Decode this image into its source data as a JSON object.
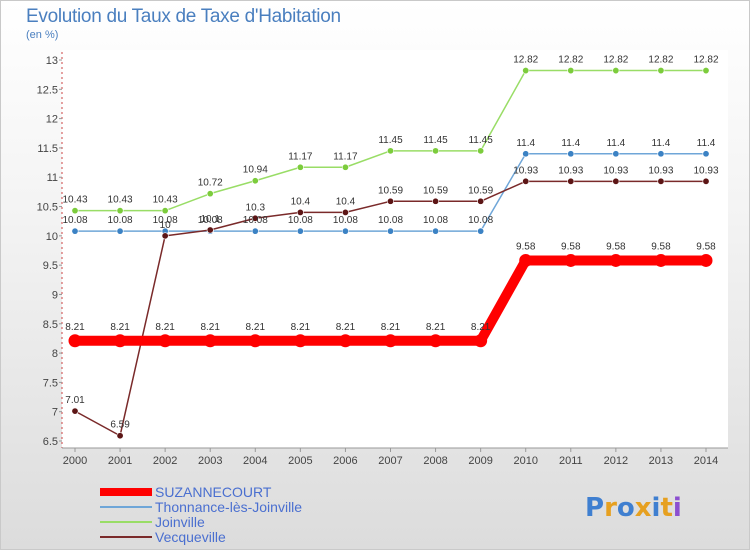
{
  "title": "Evolution du Taux de Taxe d'Habitation",
  "subtitle": "(en %)",
  "logo_text": "Proxiti",
  "chart_data": {
    "type": "line",
    "title": "Evolution du Taux de Taxe d'Habitation",
    "ylabel": "(en %)",
    "xlabel": "",
    "ylim": [
      6.5,
      13
    ],
    "yticks": [
      6.5,
      7,
      7.5,
      8,
      8.5,
      9,
      9.5,
      10,
      10.5,
      11,
      11.5,
      12,
      12.5,
      13
    ],
    "x": [
      2000,
      2001,
      2002,
      2003,
      2004,
      2005,
      2006,
      2007,
      2008,
      2009,
      2010,
      2011,
      2012,
      2013,
      2014
    ],
    "series": [
      {
        "name": "SUZANNECOURT",
        "color": "#ff0000",
        "emphasis": true,
        "values": [
          8.21,
          8.21,
          8.21,
          8.21,
          8.21,
          8.21,
          8.21,
          8.21,
          8.21,
          8.21,
          9.58,
          9.58,
          9.58,
          9.58,
          9.58
        ],
        "labels": [
          "8.21",
          "8.21",
          "8.21",
          "8.21",
          "8.21",
          "8.21",
          "8.21",
          "8.21",
          "8.21",
          "8.21",
          "9.58",
          "9.58",
          "9.58",
          "9.58",
          "9.58"
        ]
      },
      {
        "name": "Thonnance-lès-Joinville",
        "color": "#6fa6d8",
        "point_color": "#3b82c4",
        "emphasis": false,
        "values": [
          10.08,
          10.08,
          10.08,
          10.08,
          10.08,
          10.08,
          10.08,
          10.08,
          10.08,
          10.08,
          11.4,
          11.4,
          11.4,
          11.4,
          11.4
        ],
        "labels": [
          "10.08",
          "10.08",
          "10.08",
          "10.08",
          "10.08",
          "10.08",
          "10.08",
          "10.08",
          "10.08",
          "10.08",
          "11.4",
          "11.4",
          "11.4",
          "11.4",
          "11.4"
        ]
      },
      {
        "name": "Joinville",
        "color": "#99dd66",
        "point_color": "#7ccc3c",
        "emphasis": false,
        "values": [
          10.43,
          10.43,
          10.43,
          10.72,
          10.94,
          11.17,
          11.17,
          11.45,
          11.45,
          11.45,
          12.82,
          12.82,
          12.82,
          12.82,
          12.82
        ],
        "labels": [
          "10.43",
          "10.43",
          "10.43",
          "10.72",
          "10.94",
          "11.17",
          "11.17",
          "11.45",
          "11.45",
          "11.45",
          "12.82",
          "12.82",
          "12.82",
          "12.82",
          "12.82"
        ]
      },
      {
        "name": "Vecqueville",
        "color": "#7a2a2a",
        "point_color": "#5c1515",
        "emphasis": false,
        "values": [
          7.01,
          6.59,
          10.0,
          10.1,
          10.3,
          10.4,
          10.4,
          10.59,
          10.59,
          10.59,
          10.93,
          10.93,
          10.93,
          10.93,
          10.93
        ],
        "labels": [
          "7.01",
          "6.59",
          "10",
          "10.1",
          "10.3",
          "10.4",
          "10.4",
          "10.59",
          "10.59",
          "10.59",
          "10.93",
          "10.93",
          "10.93",
          "10.93",
          "10.93"
        ]
      }
    ],
    "legend_position": "bottom-left",
    "grid": false
  }
}
